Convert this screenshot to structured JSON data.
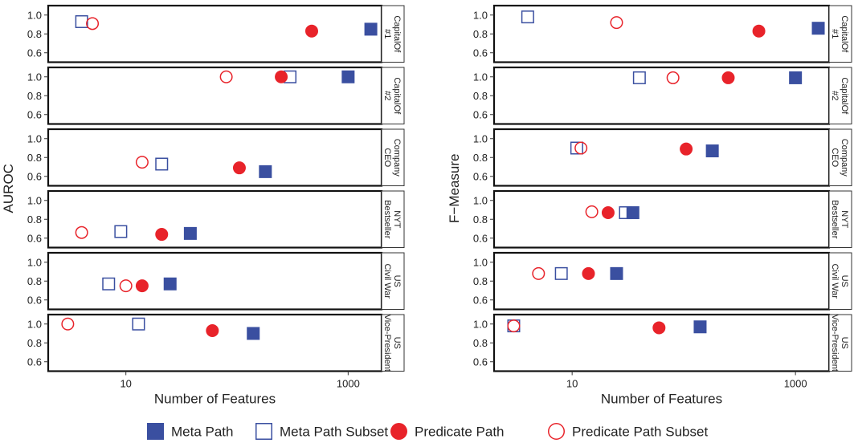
{
  "chart_data": {
    "type": "scatter",
    "xlabel": "Number of Features",
    "x_scale": "log",
    "x_ticks": [
      "10",
      "1000"
    ],
    "y_ticks": [
      "0.6",
      "0.8",
      "1.0"
    ],
    "ylim": [
      0.5,
      1.1
    ],
    "colors": {
      "Meta Path": "#3a4fa0",
      "Meta Path Subset": "#3a4fa0",
      "Predicate Path": "#e8232a",
      "Predicate Path Subset": "#e8232a"
    },
    "markers": {
      "Meta Path": "filled-square",
      "Meta Path Subset": "open-square",
      "Predicate Path": "filled-circle",
      "Predicate Path Subset": "open-circle"
    },
    "legend": {
      "position": "bottom",
      "items": [
        "Meta Path",
        "Meta Path Subset",
        "Predicate Path",
        "Predicate Path Subset"
      ]
    },
    "facets": [
      "CapitalOf #1",
      "CapitalOf #2",
      "Company CEO",
      "NYT Bestseller",
      "US Civil War",
      "US Vice-President"
    ],
    "panels": [
      {
        "ylabel": "AUROC",
        "xlim": [
          2,
          2000
        ],
        "points": {
          "Meta Path": [
            1600,
            1000,
            180,
            38,
            25,
            140
          ],
          "Meta Path Subset": [
            4,
            300,
            21,
            9,
            7,
            13
          ],
          "Predicate Path": [
            470,
            250,
            105,
            21,
            14,
            60
          ],
          "Predicate Path Subset": [
            5,
            80,
            14,
            4,
            10,
            3
          ]
        },
        "values": {
          "Meta Path": [
            0.85,
            1.0,
            0.65,
            0.65,
            0.77,
            0.9
          ],
          "Meta Path Subset": [
            0.93,
            1.0,
            0.73,
            0.67,
            0.77,
            1.0
          ],
          "Predicate Path": [
            0.83,
            1.0,
            0.69,
            0.64,
            0.75,
            0.93
          ],
          "Predicate Path Subset": [
            0.91,
            1.0,
            0.75,
            0.66,
            0.75,
            1.0
          ]
        }
      },
      {
        "ylabel": "F−Measure",
        "xlim": [
          2,
          2000
        ],
        "points": {
          "Meta Path": [
            1600,
            1000,
            180,
            35,
            25,
            140
          ],
          "Meta Path Subset": [
            4,
            40,
            11,
            30,
            8,
            3
          ],
          "Predicate Path": [
            470,
            250,
            105,
            21,
            14,
            60
          ],
          "Predicate Path Subset": [
            25,
            80,
            12,
            15,
            5,
            3
          ]
        },
        "values": {
          "Meta Path": [
            0.86,
            0.99,
            0.87,
            0.87,
            0.88,
            0.97
          ],
          "Meta Path Subset": [
            0.98,
            0.99,
            0.9,
            0.87,
            0.88,
            0.98
          ],
          "Predicate Path": [
            0.83,
            0.99,
            0.89,
            0.87,
            0.88,
            0.96
          ],
          "Predicate Path Subset": [
            0.92,
            0.99,
            0.9,
            0.88,
            0.88,
            0.98
          ]
        }
      }
    ]
  }
}
